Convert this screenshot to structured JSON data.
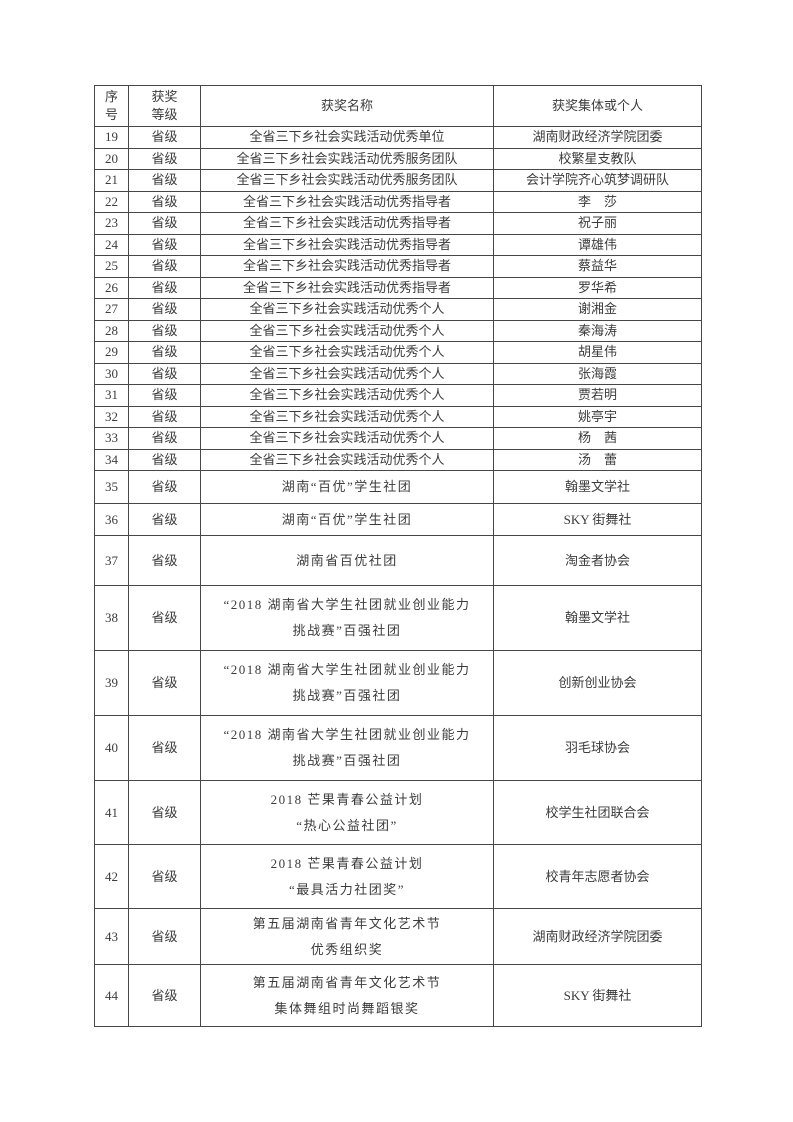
{
  "page": {
    "background": "#ffffff",
    "text_color": "#3c3c3c",
    "border_color": "#474747"
  },
  "table": {
    "headers": {
      "no": "序\n号",
      "level": "获奖\n等级",
      "award": "获奖名称",
      "recipient": "获奖集体或个人"
    },
    "rows": [
      {
        "no": "19",
        "level": "省级",
        "award": "全省三下乡社会实践活动优秀单位",
        "recipient": "湖南财政经济学院团委"
      },
      {
        "no": "20",
        "level": "省级",
        "award": "全省三下乡社会实践活动优秀服务团队",
        "recipient": "校繁星支教队"
      },
      {
        "no": "21",
        "level": "省级",
        "award": "全省三下乡社会实践活动优秀服务团队",
        "recipient": "会计学院齐心筑梦调研队"
      },
      {
        "no": "22",
        "level": "省级",
        "award": "全省三下乡社会实践活动优秀指导者",
        "recipient": "李　莎"
      },
      {
        "no": "23",
        "level": "省级",
        "award": "全省三下乡社会实践活动优秀指导者",
        "recipient": "祝子丽"
      },
      {
        "no": "24",
        "level": "省级",
        "award": "全省三下乡社会实践活动优秀指导者",
        "recipient": "谭雄伟"
      },
      {
        "no": "25",
        "level": "省级",
        "award": "全省三下乡社会实践活动优秀指导者",
        "recipient": "蔡益华"
      },
      {
        "no": "26",
        "level": "省级",
        "award": "全省三下乡社会实践活动优秀指导者",
        "recipient": "罗华希"
      },
      {
        "no": "27",
        "level": "省级",
        "award": "全省三下乡社会实践活动优秀个人",
        "recipient": "谢湘金"
      },
      {
        "no": "28",
        "level": "省级",
        "award": "全省三下乡社会实践活动优秀个人",
        "recipient": "秦海涛"
      },
      {
        "no": "29",
        "level": "省级",
        "award": "全省三下乡社会实践活动优秀个人",
        "recipient": "胡星伟"
      },
      {
        "no": "30",
        "level": "省级",
        "award": "全省三下乡社会实践活动优秀个人",
        "recipient": "张海霞"
      },
      {
        "no": "31",
        "level": "省级",
        "award": "全省三下乡社会实践活动优秀个人",
        "recipient": "贾若明"
      },
      {
        "no": "32",
        "level": "省级",
        "award": "全省三下乡社会实践活动优秀个人",
        "recipient": "姚亭宇"
      },
      {
        "no": "33",
        "level": "省级",
        "award": "全省三下乡社会实践活动优秀个人",
        "recipient": "杨　茜"
      },
      {
        "no": "34",
        "level": "省级",
        "award": "全省三下乡社会实践活动优秀个人",
        "recipient": "汤　蕾"
      },
      {
        "no": "35",
        "level": "省级",
        "award": "湖南“百优”学生社团",
        "recipient": "翰墨文学社"
      },
      {
        "no": "36",
        "level": "省级",
        "award": "湖南“百优”学生社团",
        "recipient": "SKY 街舞社"
      },
      {
        "no": "37",
        "level": "省级",
        "award": "湖南省百优社团",
        "recipient": "淘金者协会"
      },
      {
        "no": "38",
        "level": "省级",
        "award": "“2018 湖南省大学生社团就业创业能力\n挑战赛”百强社团",
        "recipient": "翰墨文学社"
      },
      {
        "no": "39",
        "level": "省级",
        "award": "“2018 湖南省大学生社团就业创业能力\n挑战赛”百强社团",
        "recipient": "创新创业协会"
      },
      {
        "no": "40",
        "level": "省级",
        "award": "“2018 湖南省大学生社团就业创业能力\n挑战赛”百强社团",
        "recipient": "羽毛球协会"
      },
      {
        "no": "41",
        "level": "省级",
        "award": "2018 芒果青春公益计划\n“热心公益社团”",
        "recipient": "校学生社团联合会"
      },
      {
        "no": "42",
        "level": "省级",
        "award": "2018 芒果青春公益计划\n“最具活力社团奖”",
        "recipient": "校青年志愿者协会"
      },
      {
        "no": "43",
        "level": "省级",
        "award": "第五届湖南省青年文化艺术节\n优秀组织奖",
        "recipient": "湖南财政经济学院团委"
      },
      {
        "no": "44",
        "level": "省级",
        "award": "第五届湖南省青年文化艺术节\n集体舞组时尚舞蹈银奖",
        "recipient": "SKY 街舞社"
      }
    ]
  }
}
